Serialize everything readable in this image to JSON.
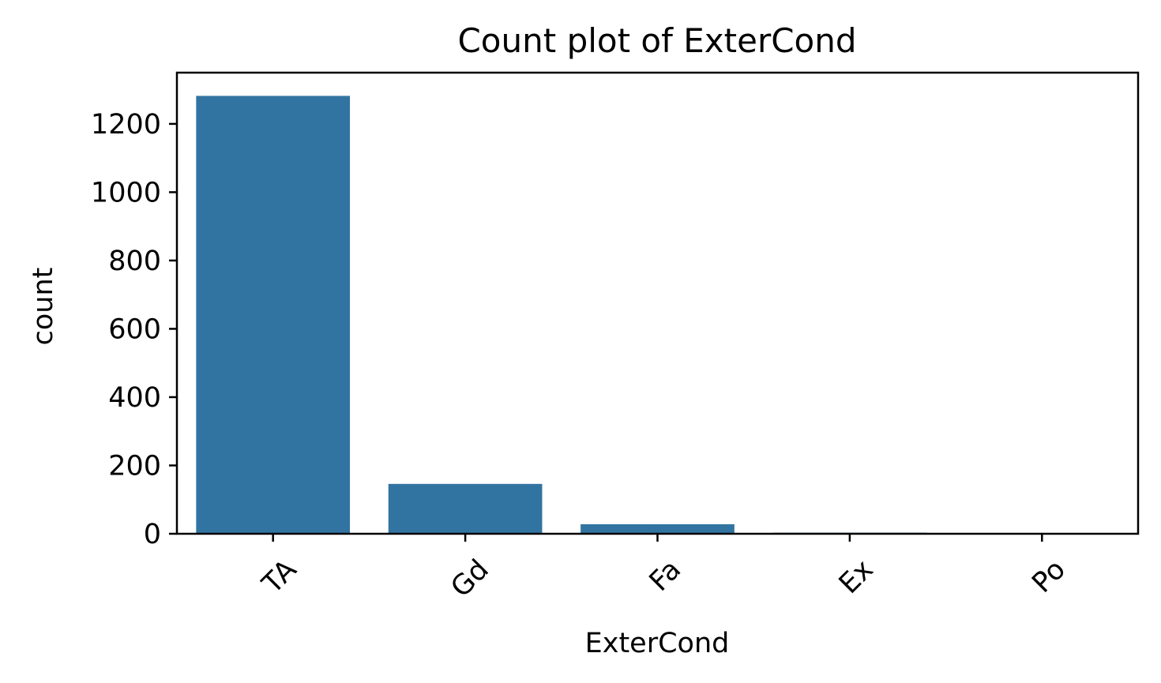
{
  "chart_data": {
    "type": "bar",
    "title": "Count plot of ExterCond",
    "xlabel": "ExterCond",
    "ylabel": "count",
    "categories": [
      "TA",
      "Gd",
      "Fa",
      "Ex",
      "Po"
    ],
    "values": [
      1282,
      146,
      28,
      3,
      1
    ],
    "ylim": [
      0,
      1350
    ],
    "yticks": [
      0,
      200,
      400,
      600,
      800,
      1000,
      1200
    ],
    "ytick_labels": [
      "0",
      "200",
      "400",
      "600",
      "800",
      "1000",
      "1200"
    ],
    "xtick_rotation_deg": 45,
    "bar_color": "#3274a1",
    "grid": false,
    "legend": false
  }
}
